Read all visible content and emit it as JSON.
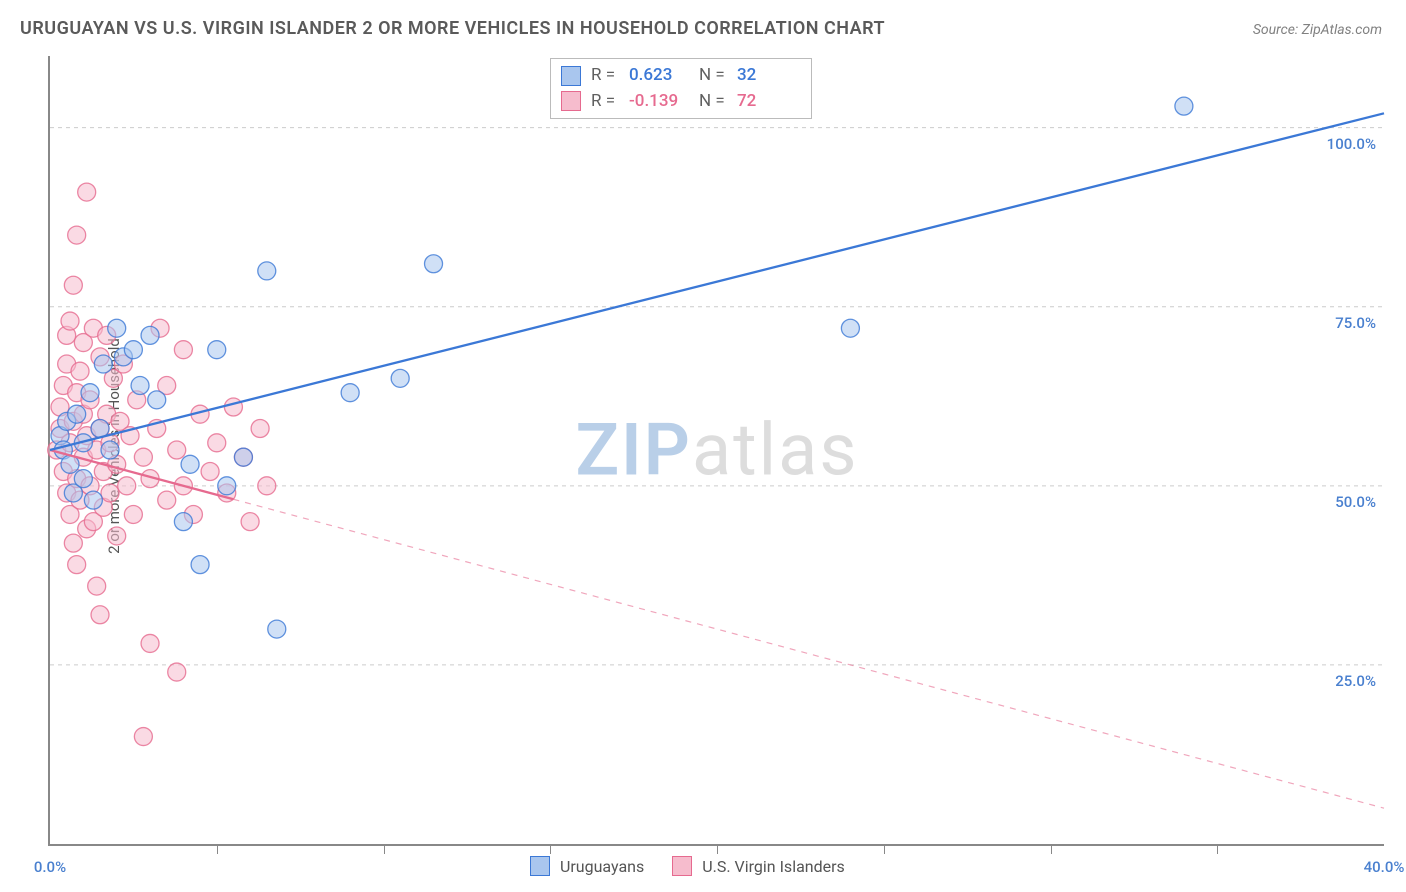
{
  "title": "URUGUAYAN VS U.S. VIRGIN ISLANDER 2 OR MORE VEHICLES IN HOUSEHOLD CORRELATION CHART",
  "source_label": "Source: ZipAtlas.com",
  "ylabel": "2 or more Vehicles in Household",
  "watermark": {
    "zip": "ZIP",
    "atlas": "atlas"
  },
  "colors": {
    "blue_stroke": "#3b78d6",
    "blue_fill": "#a9c6ee",
    "pink_stroke": "#e66a8f",
    "pink_fill": "#f6bccd",
    "grid": "#cccccc",
    "axis": "#888888",
    "ytick_text": "#4a80cf",
    "xtick_text": "#4a80cf"
  },
  "chart": {
    "type": "scatter",
    "xlim": [
      0,
      40
    ],
    "ylim": [
      0,
      110
    ],
    "ygrid": [
      25,
      50,
      75,
      100
    ],
    "ytick_labels": [
      "25.0%",
      "50.0%",
      "75.0%",
      "100.0%"
    ],
    "xticks": [
      0,
      5,
      10,
      15,
      20,
      25,
      30,
      35,
      40
    ],
    "xtick_labels_shown": {
      "0": "0.0%",
      "40": "40.0%"
    },
    "marker_radius": 9,
    "marker_opacity": 0.55,
    "line_width": 2.3
  },
  "series": {
    "blue": {
      "name": "Uruguayans",
      "R": "0.623",
      "N": "32",
      "trend": {
        "x1": 0,
        "y1": 55,
        "x2": 40,
        "y2": 102,
        "solid_until_x": 40
      },
      "points": [
        [
          0.3,
          57
        ],
        [
          0.4,
          55
        ],
        [
          0.5,
          59
        ],
        [
          0.6,
          53
        ],
        [
          0.7,
          49
        ],
        [
          0.8,
          60
        ],
        [
          1.0,
          51
        ],
        [
          1.0,
          56
        ],
        [
          1.2,
          63
        ],
        [
          1.3,
          48
        ],
        [
          1.5,
          58
        ],
        [
          1.6,
          67
        ],
        [
          1.8,
          55
        ],
        [
          2.0,
          72
        ],
        [
          2.2,
          68
        ],
        [
          2.5,
          69
        ],
        [
          2.7,
          64
        ],
        [
          3.0,
          71
        ],
        [
          3.2,
          62
        ],
        [
          4.0,
          45
        ],
        [
          4.2,
          53
        ],
        [
          4.5,
          39
        ],
        [
          5.0,
          69
        ],
        [
          5.3,
          50
        ],
        [
          5.8,
          54
        ],
        [
          6.5,
          80
        ],
        [
          6.8,
          30
        ],
        [
          9.0,
          63
        ],
        [
          10.5,
          65
        ],
        [
          11.5,
          81
        ],
        [
          24.0,
          72
        ],
        [
          34.0,
          103
        ]
      ]
    },
    "pink": {
      "name": "U.S. Virgin Islanders",
      "R": "-0.139",
      "N": "72",
      "trend": {
        "x1": 0,
        "y1": 55,
        "x2": 40,
        "y2": 5,
        "solid_until_x": 5.5
      },
      "points": [
        [
          0.2,
          55
        ],
        [
          0.3,
          58
        ],
        [
          0.3,
          61
        ],
        [
          0.4,
          52
        ],
        [
          0.4,
          64
        ],
        [
          0.5,
          49
        ],
        [
          0.5,
          67
        ],
        [
          0.5,
          71
        ],
        [
          0.6,
          46
        ],
        [
          0.6,
          56
        ],
        [
          0.6,
          73
        ],
        [
          0.7,
          42
        ],
        [
          0.7,
          59
        ],
        [
          0.7,
          78
        ],
        [
          0.8,
          39
        ],
        [
          0.8,
          51
        ],
        [
          0.8,
          63
        ],
        [
          0.8,
          85
        ],
        [
          0.9,
          66
        ],
        [
          0.9,
          48
        ],
        [
          1.0,
          54
        ],
        [
          1.0,
          60
        ],
        [
          1.0,
          70
        ],
        [
          1.1,
          44
        ],
        [
          1.1,
          57
        ],
        [
          1.1,
          91
        ],
        [
          1.2,
          50
        ],
        [
          1.2,
          62
        ],
        [
          1.3,
          45
        ],
        [
          1.3,
          72
        ],
        [
          1.4,
          36
        ],
        [
          1.4,
          55
        ],
        [
          1.5,
          68
        ],
        [
          1.5,
          32
        ],
        [
          1.5,
          58
        ],
        [
          1.6,
          52
        ],
        [
          1.6,
          47
        ],
        [
          1.7,
          60
        ],
        [
          1.7,
          71
        ],
        [
          1.8,
          49
        ],
        [
          1.8,
          56
        ],
        [
          1.9,
          65
        ],
        [
          2.0,
          53
        ],
        [
          2.0,
          43
        ],
        [
          2.1,
          59
        ],
        [
          2.2,
          67
        ],
        [
          2.3,
          50
        ],
        [
          2.4,
          57
        ],
        [
          2.5,
          46
        ],
        [
          2.6,
          62
        ],
        [
          2.8,
          54
        ],
        [
          2.8,
          15
        ],
        [
          3.0,
          51
        ],
        [
          3.0,
          28
        ],
        [
          3.2,
          58
        ],
        [
          3.3,
          72
        ],
        [
          3.5,
          48
        ],
        [
          3.5,
          64
        ],
        [
          3.8,
          24
        ],
        [
          3.8,
          55
        ],
        [
          4.0,
          50
        ],
        [
          4.0,
          69
        ],
        [
          4.3,
          46
        ],
        [
          4.5,
          60
        ],
        [
          4.8,
          52
        ],
        [
          5.0,
          56
        ],
        [
          5.3,
          49
        ],
        [
          5.5,
          61
        ],
        [
          5.8,
          54
        ],
        [
          6.0,
          45
        ],
        [
          6.3,
          58
        ],
        [
          6.5,
          50
        ]
      ]
    }
  },
  "stat_box": {
    "rows": [
      {
        "color": "blue",
        "R_label": "R =",
        "R": "0.623",
        "N_label": "N =",
        "N": "32"
      },
      {
        "color": "pink",
        "R_label": "R =",
        "R": "-0.139",
        "N_label": "N =",
        "N": "72"
      }
    ]
  },
  "bottom_legend": [
    {
      "color": "blue",
      "label": "Uruguayans"
    },
    {
      "color": "pink",
      "label": "U.S. Virgin Islanders"
    }
  ]
}
